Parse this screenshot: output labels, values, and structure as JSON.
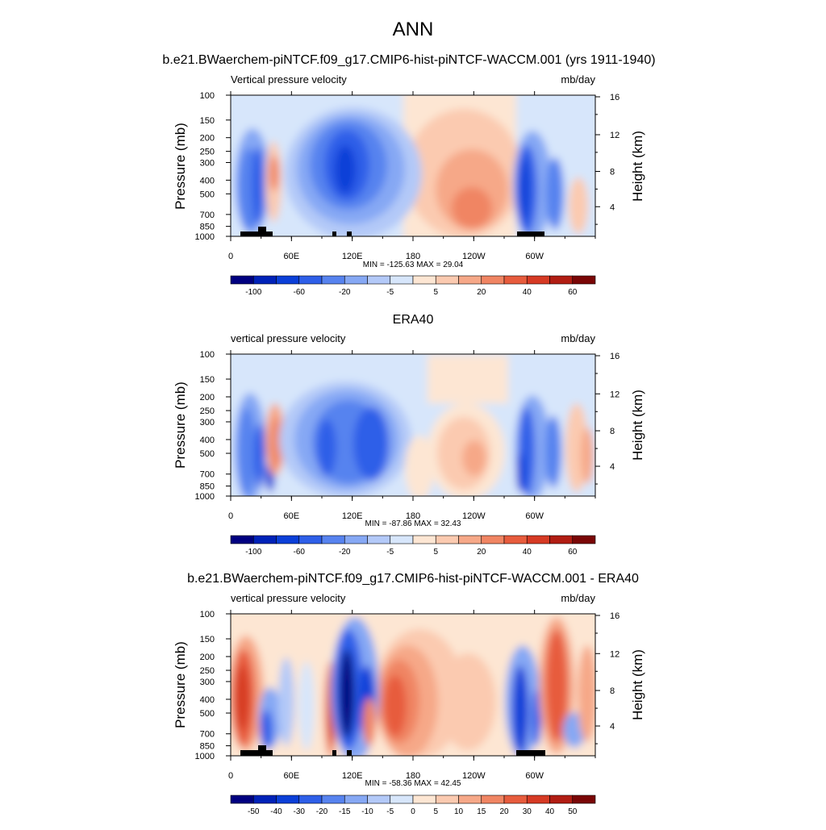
{
  "page": {
    "title": "ANN"
  },
  "chart_data": [
    {
      "type": "heatmap",
      "title": "b.e21.BWaerchem-piNTCF.f09_g17.CMIP6-hist-piNTCF-WACCM.001 (yrs 1911-1940)",
      "left_label": "Vertical pressure velocity",
      "right_label": "mb/day",
      "ylabel": "Pressure (mb)",
      "ylabel_right": "Height (km)",
      "x_ticks": [
        "0",
        "60E",
        "120E",
        "180",
        "120W",
        "60W"
      ],
      "y_ticks": [
        "100",
        "150",
        "200",
        "250",
        "300",
        "400",
        "500",
        "700",
        "850",
        "1000"
      ],
      "y_ticks_right": [
        "16",
        "12",
        "8",
        "4"
      ],
      "stats": "MIN = -125.63  MAX =  29.04",
      "colorbar_labels": [
        "-100",
        "-60",
        "-20",
        "-5",
        "5",
        "20",
        "40",
        "60"
      ],
      "colorbar_colors": [
        "#000080",
        "#0022b8",
        "#0b3fd8",
        "#2e5fe8",
        "#5783ef",
        "#86a8f4",
        "#b3c9f8",
        "#d7e6fb",
        "#fde6d3",
        "#fbcab0",
        "#f6a888",
        "#f08563",
        "#e75c3d",
        "#d63a24",
        "#b11d13",
        "#7a0606"
      ]
    },
    {
      "type": "heatmap",
      "title": "ERA40",
      "left_label": "vertical pressure velocity",
      "right_label": "mb/day",
      "ylabel": "Pressure (mb)",
      "ylabel_right": "Height (km)",
      "x_ticks": [
        "0",
        "60E",
        "120E",
        "180",
        "120W",
        "60W"
      ],
      "y_ticks": [
        "100",
        "150",
        "200",
        "250",
        "300",
        "400",
        "500",
        "700",
        "850",
        "1000"
      ],
      "y_ticks_right": [
        "16",
        "12",
        "8",
        "4"
      ],
      "stats": "MIN = -87.86  MAX =  32.43",
      "colorbar_labels": [
        "-100",
        "-60",
        "-20",
        "-5",
        "5",
        "20",
        "40",
        "60"
      ],
      "colorbar_colors": [
        "#000080",
        "#0022b8",
        "#0b3fd8",
        "#2e5fe8",
        "#5783ef",
        "#86a8f4",
        "#b3c9f8",
        "#d7e6fb",
        "#fde6d3",
        "#fbcab0",
        "#f6a888",
        "#f08563",
        "#e75c3d",
        "#d63a24",
        "#b11d13",
        "#7a0606"
      ]
    },
    {
      "type": "heatmap",
      "title": "b.e21.BWaerchem-piNTCF.f09_g17.CMIP6-hist-piNTCF-WACCM.001 - ERA40",
      "left_label": "vertical pressure velocity",
      "right_label": "mb/day",
      "ylabel": "Pressure (mb)",
      "ylabel_right": "Height (km)",
      "x_ticks": [
        "0",
        "60E",
        "120E",
        "180",
        "120W",
        "60W"
      ],
      "y_ticks": [
        "100",
        "150",
        "200",
        "250",
        "300",
        "400",
        "500",
        "700",
        "850",
        "1000"
      ],
      "y_ticks_right": [
        "16",
        "12",
        "8",
        "4"
      ],
      "stats": "MIN = -58.36  MAX = 42.45",
      "colorbar_labels": [
        "-50",
        "-40",
        "-30",
        "-20",
        "-15",
        "-10",
        "-5",
        "0",
        "5",
        "10",
        "15",
        "20",
        "30",
        "40",
        "50"
      ],
      "colorbar_colors": [
        "#000080",
        "#0022b8",
        "#0b3fd8",
        "#2e5fe8",
        "#5783ef",
        "#86a8f4",
        "#b3c9f8",
        "#d7e6fb",
        "#fde6d3",
        "#fbcab0",
        "#f6a888",
        "#f08563",
        "#e75c3d",
        "#d63a24",
        "#b11d13",
        "#7a0606"
      ]
    }
  ]
}
